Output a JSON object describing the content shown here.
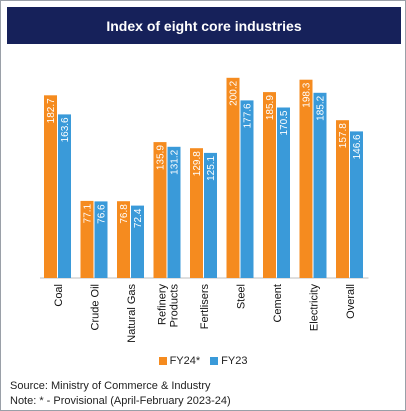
{
  "title": "Index of eight core industries",
  "colors": {
    "fy24": "#f58b1f",
    "fy23": "#3a9ad9",
    "title_bg": "#16215a"
  },
  "chart_data": {
    "type": "bar",
    "title": "Index of eight core industries",
    "categories": [
      "Coal",
      "Crude Oil",
      "Natural Gas",
      "Refinery Products",
      "Fertlisers",
      "Steel",
      "Cement",
      "Electricity",
      "Overall"
    ],
    "series": [
      {
        "name": "FY24*",
        "values": [
          182.7,
          77.1,
          76.8,
          135.9,
          129.8,
          200.2,
          185.9,
          198.3,
          157.8
        ]
      },
      {
        "name": "FY23",
        "values": [
          163.6,
          76.6,
          72.4,
          131.2,
          125.1,
          177.6,
          170.5,
          185.2,
          146.6
        ]
      }
    ],
    "ylim": [
      0,
      220
    ],
    "grid": false,
    "legend_position": "bottom"
  },
  "legend": {
    "fy24": "FY24*",
    "fy23": "FY23"
  },
  "footer": {
    "source": "Source: Ministry of Commerce & Industry",
    "note": "Note: * - Provisional (April-February 2023-24)"
  }
}
